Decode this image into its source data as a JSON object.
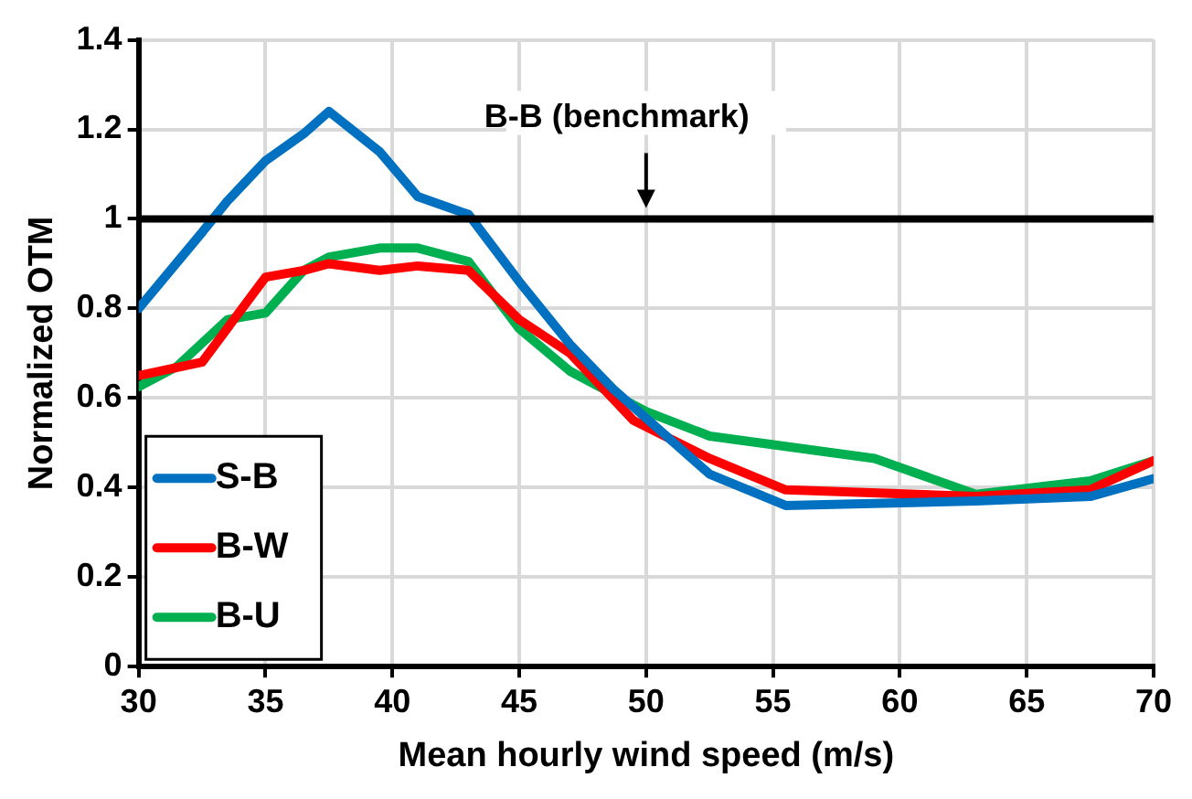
{
  "chart_data": {
    "type": "line",
    "xlabel": "Mean hourly wind speed (m/s)",
    "ylabel": "Normalized OTM",
    "xlim": [
      30,
      70
    ],
    "xticks": [
      30,
      35,
      40,
      45,
      50,
      55,
      60,
      65,
      70
    ],
    "ylim": [
      0,
      1.4
    ],
    "yticks": [
      0,
      0.2,
      0.4,
      0.6,
      0.8,
      1,
      1.2,
      1.4
    ],
    "grid": true,
    "legend": "bottom left",
    "marker": "none",
    "line_style": "solid",
    "ref_lines": [
      {
        "axis": "y",
        "value": 1,
        "color": "#000000"
      }
    ],
    "annotations": [
      {
        "text": "B-B (benchmark)",
        "x": 50,
        "y": 1
      }
    ],
    "series": [
      {
        "name": "S-B",
        "color": "#0070c0",
        "x": [
          30,
          32.5,
          33.5,
          35,
          36.5,
          37.5,
          39.5,
          41,
          43,
          45,
          47,
          48.7,
          52.5,
          55.5,
          63,
          67.5,
          70
        ],
        "values": [
          0.8,
          0.97,
          1.04,
          1.13,
          1.19,
          1.24,
          1.15,
          1.05,
          1.01,
          0.86,
          0.72,
          0.62,
          0.43,
          0.36,
          0.37,
          0.38,
          0.42
        ]
      },
      {
        "name": "B-W",
        "color": "#ff0000",
        "x": [
          30,
          32.5,
          35,
          36.5,
          37.5,
          39.5,
          41,
          43,
          45,
          47,
          49.5,
          52.5,
          55.5,
          63,
          67.5,
          70
        ],
        "values": [
          0.65,
          0.68,
          0.87,
          0.885,
          0.9,
          0.885,
          0.895,
          0.885,
          0.775,
          0.7,
          0.55,
          0.465,
          0.395,
          0.38,
          0.395,
          0.46
        ]
      },
      {
        "name": "B-U",
        "color": "#00b050",
        "x": [
          30,
          31.5,
          33.5,
          35,
          36.5,
          37.5,
          39.5,
          41,
          43,
          45,
          47,
          50,
          52.5,
          59,
          63,
          67.5,
          70
        ],
        "values": [
          0.625,
          0.67,
          0.775,
          0.79,
          0.885,
          0.915,
          0.935,
          0.935,
          0.905,
          0.755,
          0.66,
          0.57,
          0.515,
          0.465,
          0.385,
          0.415,
          0.46
        ]
      }
    ]
  }
}
